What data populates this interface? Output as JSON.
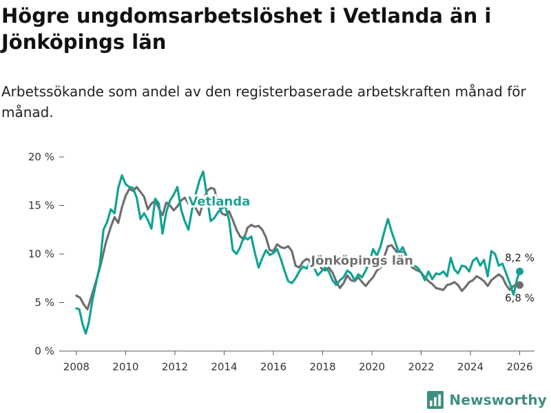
{
  "header": {
    "title": "Högre ungdomsarbetslöshet i Vetlanda än i Jönköpings län",
    "subtitle": "Arbetssökande som andel av den registerbaserade arbetskraften månad för månad."
  },
  "brand": {
    "name": "Newsworthy",
    "icon": "bar-chart-logo-icon",
    "color": "#3f8f80"
  },
  "chart_data": {
    "type": "line",
    "title": "Högre ungdomsarbetslöshet i Vetlanda än i Jönköpings län",
    "subtitle": "Arbetssökande som andel av den registerbaserade arbetskraften månad för månad.",
    "xlabel": "",
    "ylabel": "",
    "xlim": [
      2007.5,
      2026.6
    ],
    "ylim": [
      0,
      20
    ],
    "x_ticks": [
      2008,
      2010,
      2012,
      2014,
      2016,
      2018,
      2020,
      2022,
      2024,
      2026
    ],
    "x_tick_labels": [
      "2008",
      "2010",
      "2012",
      "2014",
      "2016",
      "2018",
      "2020",
      "2022",
      "2024",
      "2026"
    ],
    "y_ticks": [
      0,
      5,
      10,
      15,
      20
    ],
    "y_tick_labels": [
      "0 %",
      "5 %",
      "10 %",
      "15 %",
      "20 %"
    ],
    "grid": false,
    "series": [
      {
        "name": "Jönköpings län",
        "color": "#6e6e6e",
        "end_label": "6,8 %",
        "points": [
          [
            2008.0,
            5.7
          ],
          [
            2008.15,
            5.5
          ],
          [
            2008.3,
            4.8
          ],
          [
            2008.45,
            4.3
          ],
          [
            2008.6,
            5.5
          ],
          [
            2008.8,
            7.2
          ],
          [
            2009.0,
            9.0
          ],
          [
            2009.2,
            11.2
          ],
          [
            2009.4,
            12.8
          ],
          [
            2009.55,
            13.8
          ],
          [
            2009.7,
            13.2
          ],
          [
            2009.85,
            14.8
          ],
          [
            2010.0,
            16.0
          ],
          [
            2010.15,
            16.7
          ],
          [
            2010.3,
            16.5
          ],
          [
            2010.45,
            16.9
          ],
          [
            2010.6,
            16.4
          ],
          [
            2010.75,
            15.9
          ],
          [
            2010.9,
            14.6
          ],
          [
            2011.05,
            15.2
          ],
          [
            2011.2,
            15.5
          ],
          [
            2011.35,
            14.7
          ],
          [
            2011.5,
            14.0
          ],
          [
            2011.65,
            15.3
          ],
          [
            2011.8,
            15.0
          ],
          [
            2011.95,
            14.5
          ],
          [
            2012.1,
            14.9
          ],
          [
            2012.25,
            15.5
          ],
          [
            2012.4,
            15.8
          ],
          [
            2012.55,
            15.2
          ],
          [
            2012.7,
            15.5
          ],
          [
            2012.85,
            14.7
          ],
          [
            2013.0,
            14.0
          ],
          [
            2013.15,
            15.3
          ],
          [
            2013.3,
            16.5
          ],
          [
            2013.45,
            16.8
          ],
          [
            2013.6,
            16.7
          ],
          [
            2013.75,
            15.3
          ],
          [
            2013.9,
            14.2
          ],
          [
            2014.05,
            14.0
          ],
          [
            2014.2,
            14.4
          ],
          [
            2014.35,
            13.5
          ],
          [
            2014.5,
            12.5
          ],
          [
            2014.65,
            11.8
          ],
          [
            2014.8,
            11.5
          ],
          [
            2014.95,
            12.7
          ],
          [
            2015.1,
            13.0
          ],
          [
            2015.25,
            12.8
          ],
          [
            2015.4,
            12.9
          ],
          [
            2015.55,
            12.5
          ],
          [
            2015.7,
            11.7
          ],
          [
            2015.85,
            10.4
          ],
          [
            2016.0,
            10.3
          ],
          [
            2016.15,
            11.0
          ],
          [
            2016.3,
            10.7
          ],
          [
            2016.45,
            10.6
          ],
          [
            2016.6,
            10.8
          ],
          [
            2016.75,
            10.3
          ],
          [
            2016.9,
            8.8
          ],
          [
            2017.05,
            8.6
          ],
          [
            2017.2,
            9.2
          ],
          [
            2017.35,
            9.5
          ],
          [
            2017.5,
            9.3
          ],
          [
            2017.65,
            9.7
          ],
          [
            2017.8,
            9.4
          ],
          [
            2017.95,
            8.5
          ],
          [
            2018.1,
            8.3
          ],
          [
            2018.25,
            8.6
          ],
          [
            2018.4,
            8.1
          ],
          [
            2018.55,
            7.2
          ],
          [
            2018.7,
            6.5
          ],
          [
            2018.85,
            7.0
          ],
          [
            2019.0,
            7.8
          ],
          [
            2019.15,
            7.3
          ],
          [
            2019.3,
            7.2
          ],
          [
            2019.45,
            7.6
          ],
          [
            2019.6,
            7.1
          ],
          [
            2019.75,
            6.7
          ],
          [
            2019.9,
            7.2
          ],
          [
            2020.05,
            7.6
          ],
          [
            2020.2,
            8.3
          ],
          [
            2020.35,
            8.6
          ],
          [
            2020.5,
            9.7
          ],
          [
            2020.65,
            10.8
          ],
          [
            2020.8,
            10.9
          ],
          [
            2020.95,
            10.4
          ],
          [
            2021.1,
            9.9
          ],
          [
            2021.25,
            10.2
          ],
          [
            2021.4,
            9.6
          ],
          [
            2021.55,
            8.8
          ],
          [
            2021.7,
            8.5
          ],
          [
            2021.85,
            8.3
          ],
          [
            2022.0,
            8.1
          ],
          [
            2022.15,
            7.6
          ],
          [
            2022.3,
            7.2
          ],
          [
            2022.45,
            6.9
          ],
          [
            2022.6,
            6.5
          ],
          [
            2022.75,
            6.4
          ],
          [
            2022.9,
            6.3
          ],
          [
            2023.05,
            6.8
          ],
          [
            2023.2,
            6.9
          ],
          [
            2023.35,
            7.1
          ],
          [
            2023.5,
            6.8
          ],
          [
            2023.65,
            6.2
          ],
          [
            2023.8,
            6.6
          ],
          [
            2023.95,
            7.1
          ],
          [
            2024.1,
            7.3
          ],
          [
            2024.25,
            7.7
          ],
          [
            2024.4,
            7.5
          ],
          [
            2024.55,
            7.2
          ],
          [
            2024.7,
            6.7
          ],
          [
            2024.85,
            7.3
          ],
          [
            2025.0,
            7.6
          ],
          [
            2025.15,
            7.9
          ],
          [
            2025.3,
            7.6
          ],
          [
            2025.45,
            6.8
          ],
          [
            2025.6,
            6.3
          ],
          [
            2025.75,
            6.7
          ],
          [
            2025.9,
            6.9
          ],
          [
            2026.0,
            6.8
          ]
        ]
      },
      {
        "name": "Vetlanda",
        "color": "#11a293",
        "end_label": "8,2 %",
        "points": [
          [
            2008.0,
            4.4
          ],
          [
            2008.12,
            4.3
          ],
          [
            2008.25,
            2.8
          ],
          [
            2008.38,
            1.8
          ],
          [
            2008.5,
            2.9
          ],
          [
            2008.65,
            5.2
          ],
          [
            2008.8,
            7.0
          ],
          [
            2008.95,
            8.8
          ],
          [
            2009.1,
            12.5
          ],
          [
            2009.25,
            13.3
          ],
          [
            2009.4,
            14.6
          ],
          [
            2009.55,
            14.2
          ],
          [
            2009.7,
            16.8
          ],
          [
            2009.85,
            18.1
          ],
          [
            2010.0,
            17.2
          ],
          [
            2010.15,
            16.9
          ],
          [
            2010.3,
            16.8
          ],
          [
            2010.45,
            15.8
          ],
          [
            2010.6,
            13.6
          ],
          [
            2010.75,
            14.2
          ],
          [
            2010.9,
            13.5
          ],
          [
            2011.05,
            12.6
          ],
          [
            2011.2,
            15.7
          ],
          [
            2011.35,
            15.2
          ],
          [
            2011.5,
            12.1
          ],
          [
            2011.65,
            14.3
          ],
          [
            2011.8,
            15.5
          ],
          [
            2011.95,
            16.1
          ],
          [
            2012.1,
            16.9
          ],
          [
            2012.25,
            14.6
          ],
          [
            2012.4,
            13.4
          ],
          [
            2012.55,
            12.5
          ],
          [
            2012.7,
            14.6
          ],
          [
            2012.85,
            16.2
          ],
          [
            2013.0,
            17.6
          ],
          [
            2013.15,
            18.5
          ],
          [
            2013.3,
            16.0
          ],
          [
            2013.45,
            13.4
          ],
          [
            2013.6,
            13.7
          ],
          [
            2013.75,
            14.3
          ],
          [
            2013.9,
            14.7
          ],
          [
            2014.05,
            14.9
          ],
          [
            2014.2,
            13.5
          ],
          [
            2014.35,
            10.4
          ],
          [
            2014.5,
            10.0
          ],
          [
            2014.65,
            10.7
          ],
          [
            2014.8,
            11.8
          ],
          [
            2014.95,
            11.5
          ],
          [
            2015.1,
            11.8
          ],
          [
            2015.25,
            10.1
          ],
          [
            2015.4,
            8.6
          ],
          [
            2015.55,
            9.6
          ],
          [
            2015.7,
            10.4
          ],
          [
            2015.85,
            9.9
          ],
          [
            2016.0,
            10.1
          ],
          [
            2016.15,
            10.5
          ],
          [
            2016.3,
            9.5
          ],
          [
            2016.45,
            8.3
          ],
          [
            2016.6,
            7.2
          ],
          [
            2016.75,
            7.0
          ],
          [
            2016.9,
            7.5
          ],
          [
            2017.05,
            8.2
          ],
          [
            2017.2,
            8.7
          ],
          [
            2017.35,
            8.5
          ],
          [
            2017.5,
            9.2
          ],
          [
            2017.65,
            8.6
          ],
          [
            2017.8,
            7.8
          ],
          [
            2017.95,
            8.2
          ],
          [
            2018.1,
            8.6
          ],
          [
            2018.25,
            8.2
          ],
          [
            2018.4,
            7.3
          ],
          [
            2018.55,
            6.8
          ],
          [
            2018.7,
            7.3
          ],
          [
            2018.85,
            7.6
          ],
          [
            2019.0,
            8.3
          ],
          [
            2019.15,
            8.0
          ],
          [
            2019.3,
            7.3
          ],
          [
            2019.45,
            7.9
          ],
          [
            2019.6,
            7.6
          ],
          [
            2019.75,
            8.3
          ],
          [
            2019.9,
            9.2
          ],
          [
            2020.05,
            10.5
          ],
          [
            2020.2,
            9.8
          ],
          [
            2020.35,
            10.8
          ],
          [
            2020.5,
            12.3
          ],
          [
            2020.65,
            13.6
          ],
          [
            2020.8,
            12.3
          ],
          [
            2020.95,
            11.2
          ],
          [
            2021.1,
            10.1
          ],
          [
            2021.25,
            10.7
          ],
          [
            2021.4,
            9.8
          ],
          [
            2021.55,
            9.3
          ],
          [
            2021.7,
            8.8
          ],
          [
            2021.85,
            8.6
          ],
          [
            2022.0,
            8.1
          ],
          [
            2022.15,
            7.3
          ],
          [
            2022.3,
            8.2
          ],
          [
            2022.45,
            7.4
          ],
          [
            2022.6,
            8.0
          ],
          [
            2022.75,
            7.9
          ],
          [
            2022.9,
            8.2
          ],
          [
            2023.05,
            7.7
          ],
          [
            2023.2,
            9.6
          ],
          [
            2023.35,
            8.4
          ],
          [
            2023.5,
            8.0
          ],
          [
            2023.65,
            8.8
          ],
          [
            2023.8,
            8.7
          ],
          [
            2023.95,
            8.2
          ],
          [
            2024.1,
            9.3
          ],
          [
            2024.25,
            9.6
          ],
          [
            2024.4,
            8.8
          ],
          [
            2024.55,
            9.4
          ],
          [
            2024.7,
            7.7
          ],
          [
            2024.85,
            10.3
          ],
          [
            2025.0,
            10.0
          ],
          [
            2025.15,
            8.8
          ],
          [
            2025.3,
            9.0
          ],
          [
            2025.45,
            8.0
          ],
          [
            2025.6,
            7.0
          ],
          [
            2025.75,
            5.8
          ],
          [
            2025.9,
            7.5
          ],
          [
            2026.0,
            8.2
          ]
        ]
      }
    ],
    "annotations": [
      {
        "text": "Vetlanda",
        "series": "Vetlanda",
        "x": 2013.8,
        "y": 15.0
      },
      {
        "text": "Jönköpings län",
        "series": "Jönköpings län",
        "x": 2019.6,
        "y": 8.9
      }
    ]
  }
}
